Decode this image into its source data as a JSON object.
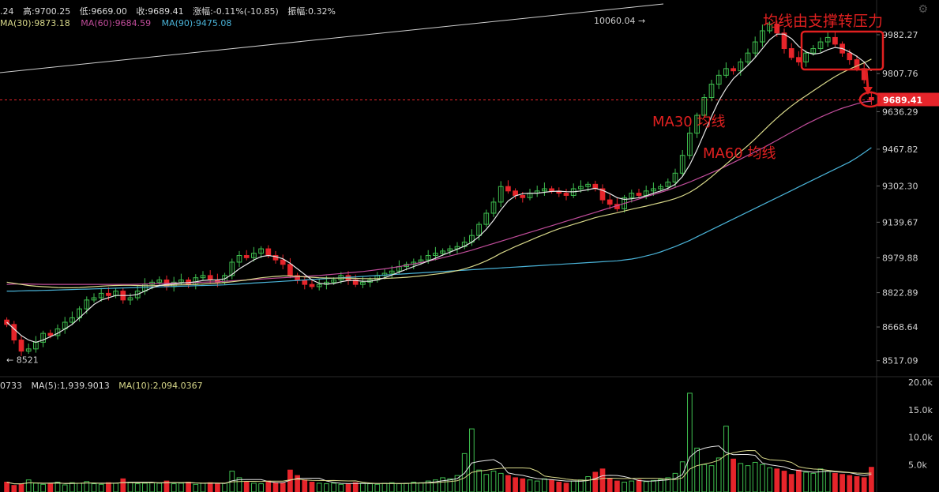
{
  "header": {
    "open_frag": ".24",
    "high": "高:9700.25",
    "low": "低:9669.00",
    "close": "收:9689.41",
    "change": "涨幅:-0.11%(-10.85)",
    "amplitude": "振幅:0.32%"
  },
  "ma_legend": {
    "ma30": "MA(30):9873.18",
    "ma60": "MA(60):9684.59",
    "ma90": "MA(90):9475.08"
  },
  "volume_legend": {
    "vol_frag": "0733",
    "ma5": "MA(5):1,939.9013",
    "ma10": "MA(10):2,094.0367"
  },
  "annotations": {
    "title": "均线由支撑转压力",
    "ma30_label": "MA30 均线",
    "ma60_label": "MA60 均线"
  },
  "markers": {
    "high_label": "10060.04 →",
    "low_label": "← 8521",
    "current_price": "9689.41"
  },
  "colors": {
    "up": "#3fbf4f",
    "down": "#e6252b",
    "ma_short": "#e6e6e6",
    "ma30": "#d8d88a",
    "ma60": "#c04c9a",
    "ma90": "#4ab3d8",
    "annotation": "#e02020"
  },
  "chart_data": {
    "type": "candlestick",
    "y_ticks": [
      "9982.27",
      "9807.76",
      "9636.29",
      "9467.82",
      "9302.30",
      "9139.67",
      "8979.88",
      "8822.89",
      "8668.64",
      "8517.09"
    ],
    "y_range": [
      8470,
      10110
    ],
    "volume_ticks": [
      "20.0k",
      "15.0k",
      "10.0k",
      "5.0k"
    ],
    "volume_range": [
      0,
      20000
    ],
    "current_price": 9689.41,
    "high": 10060.04,
    "low": 8521,
    "n_candles": 120,
    "closes": [
      8680,
      8610,
      8560,
      8570,
      8600,
      8640,
      8630,
      8660,
      8690,
      8710,
      8750,
      8790,
      8800,
      8820,
      8810,
      8830,
      8790,
      8800,
      8830,
      8860,
      8870,
      8880,
      8850,
      8870,
      8880,
      8860,
      8890,
      8900,
      8880,
      8870,
      8900,
      8960,
      8990,
      8980,
      9000,
      9020,
      8990,
      8970,
      8950,
      8900,
      8880,
      8860,
      8850,
      8860,
      8870,
      8880,
      8900,
      8880,
      8860,
      8870,
      8880,
      8900,
      8910,
      8920,
      8940,
      8950,
      8960,
      8970,
      8990,
      9000,
      9010,
      9020,
      9030,
      9050,
      9080,
      9130,
      9180,
      9230,
      9300,
      9280,
      9260,
      9250,
      9270,
      9280,
      9290,
      9280,
      9270,
      9260,
      9290,
      9300,
      9310,
      9290,
      9240,
      9220,
      9200,
      9250,
      9270,
      9260,
      9280,
      9290,
      9300,
      9320,
      9360,
      9440,
      9540,
      9620,
      9700,
      9760,
      9800,
      9830,
      9820,
      9860,
      9900,
      9950,
      10000,
      10030,
      9990,
      9920,
      9880,
      9860,
      9900,
      9920,
      9950,
      9970,
      9940,
      9900,
      9870,
      9830,
      9780,
      9689
    ],
    "opens": [
      8700,
      8680,
      8610,
      8560,
      8570,
      8600,
      8640,
      8630,
      8660,
      8690,
      8710,
      8750,
      8790,
      8800,
      8820,
      8810,
      8830,
      8790,
      8800,
      8830,
      8860,
      8870,
      8880,
      8850,
      8870,
      8880,
      8860,
      8890,
      8900,
      8880,
      8870,
      8900,
      8960,
      8990,
      8980,
      9000,
      9020,
      8990,
      8970,
      8950,
      8900,
      8880,
      8860,
      8850,
      8860,
      8870,
      8880,
      8900,
      8880,
      8860,
      8870,
      8880,
      8900,
      8910,
      8920,
      8940,
      8950,
      8960,
      8970,
      8990,
      9000,
      9010,
      9020,
      9030,
      9050,
      9080,
      9130,
      9180,
      9230,
      9300,
      9280,
      9260,
      9250,
      9270,
      9280,
      9290,
      9280,
      9270,
      9260,
      9290,
      9300,
      9310,
      9290,
      9240,
      9220,
      9200,
      9250,
      9270,
      9260,
      9280,
      9290,
      9300,
      9320,
      9360,
      9440,
      9540,
      9620,
      9700,
      9760,
      9800,
      9830,
      9820,
      9860,
      9900,
      9950,
      10000,
      10030,
      9990,
      9920,
      9880,
      9860,
      9900,
      9920,
      9950,
      9970,
      9940,
      9900,
      9870,
      9830,
      9700
    ],
    "ma_short": [
      8690,
      8660,
      8630,
      8610,
      8600,
      8610,
      8625,
      8640,
      8660,
      8680,
      8710,
      8740,
      8770,
      8790,
      8800,
      8810,
      8810,
      8810,
      8815,
      8830,
      8845,
      8855,
      8860,
      8862,
      8866,
      8868,
      8872,
      8878,
      8880,
      8880,
      8885,
      8905,
      8930,
      8950,
      8970,
      8985,
      8990,
      8985,
      8975,
      8955,
      8930,
      8905,
      8880,
      8865,
      8862,
      8864,
      8872,
      8878,
      8878,
      8874,
      8874,
      8880,
      8890,
      8902,
      8915,
      8928,
      8940,
      8952,
      8965,
      8978,
      8992,
      9005,
      9018,
      9032,
      9050,
      9075,
      9108,
      9148,
      9195,
      9235,
      9258,
      9268,
      9270,
      9270,
      9274,
      9278,
      9279,
      9277,
      9276,
      9280,
      9286,
      9292,
      9283,
      9268,
      9250,
      9242,
      9245,
      9250,
      9258,
      9270,
      9280,
      9292,
      9310,
      9345,
      9398,
      9465,
      9540,
      9615,
      9685,
      9740,
      9785,
      9815,
      9845,
      9880,
      9920,
      9960,
      9985,
      9985,
      9965,
      9930,
      9905,
      9895,
      9900,
      9915,
      9925,
      9920,
      9905,
      9885,
      9860,
      9820
    ],
    "ma30": [
      8870,
      8865,
      8860,
      8855,
      8852,
      8850,
      8848,
      8846,
      8845,
      8845,
      8846,
      8848,
      8850,
      8852,
      8854,
      8855,
      8856,
      8856,
      8855,
      8854,
      8854,
      8855,
      8856,
      8857,
      8858,
      8859,
      8860,
      8862,
      8864,
      8866,
      8868,
      8872,
      8876,
      8880,
      8885,
      8890,
      8893,
      8896,
      8898,
      8898,
      8896,
      8894,
      8892,
      8890,
      8889,
      8888,
      8888,
      8888,
      8887,
      8886,
      8886,
      8886,
      8887,
      8888,
      8890,
      8892,
      8895,
      8898,
      8902,
      8906,
      8910,
      8916,
      8922,
      8930,
      8940,
      8952,
      8966,
      8982,
      9000,
      9015,
      9030,
      9044,
      9058,
      9072,
      9085,
      9098,
      9110,
      9120,
      9130,
      9140,
      9150,
      9160,
      9168,
      9175,
      9182,
      9190,
      9198,
      9205,
      9212,
      9220,
      9228,
      9236,
      9246,
      9258,
      9274,
      9294,
      9318,
      9344,
      9372,
      9400,
      9428,
      9456,
      9484,
      9514,
      9546,
      9578,
      9608,
      9636,
      9662,
      9686,
      9708,
      9730,
      9752,
      9774,
      9794,
      9812,
      9828,
      9842,
      9856,
      9873
    ],
    "ma60": [
      8860,
      8862,
      8862,
      8862,
      8861,
      8860,
      8860,
      8860,
      8860,
      8860,
      8860,
      8860,
      8860,
      8860,
      8860,
      8860,
      8860,
      8860,
      8861,
      8862,
      8863,
      8864,
      8865,
      8866,
      8867,
      8868,
      8869,
      8870,
      8871,
      8872,
      8874,
      8876,
      8878,
      8880,
      8882,
      8884,
      8886,
      8888,
      8890,
      8892,
      8894,
      8896,
      8898,
      8900,
      8903,
      8906,
      8909,
      8912,
      8915,
      8918,
      8922,
      8926,
      8930,
      8935,
      8940,
      8946,
      8952,
      8958,
      8965,
      8972,
      8980,
      8988,
      8996,
      9005,
      9014,
      9024,
      9034,
      9044,
      9054,
      9064,
      9074,
      9084,
      9094,
      9104,
      9114,
      9124,
      9134,
      9144,
      9154,
      9164,
      9174,
      9184,
      9194,
      9204,
      9214,
      9224,
      9234,
      9244,
      9254,
      9264,
      9274,
      9284,
      9296,
      9308,
      9320,
      9334,
      9348,
      9362,
      9376,
      9392,
      9408,
      9424,
      9440,
      9456,
      9472,
      9490,
      9508,
      9526,
      9544,
      9562,
      9580,
      9596,
      9612,
      9626,
      9640,
      9652,
      9662,
      9672,
      9680,
      9684
    ],
    "ma90": [
      8830,
      8830,
      8831,
      8832,
      8832,
      8833,
      8834,
      8835,
      8836,
      8837,
      8838,
      8839,
      8840,
      8841,
      8842,
      8843,
      8844,
      8845,
      8846,
      8847,
      8848,
      8849,
      8850,
      8851,
      8852,
      8853,
      8854,
      8855,
      8856,
      8857,
      8858,
      8860,
      8862,
      8864,
      8866,
      8868,
      8870,
      8872,
      8874,
      8876,
      8878,
      8880,
      8882,
      8884,
      8886,
      8888,
      8890,
      8892,
      8894,
      8896,
      8898,
      8900,
      8902,
      8904,
      8906,
      8908,
      8910,
      8912,
      8914,
      8916,
      8918,
      8920,
      8922,
      8924,
      8926,
      8928,
      8930,
      8932,
      8934,
      8936,
      8938,
      8940,
      8942,
      8944,
      8946,
      8948,
      8950,
      8952,
      8954,
      8956,
      8958,
      8960,
      8962,
      8964,
      8966,
      8970,
      8974,
      8980,
      8988,
      8996,
      9006,
      9018,
      9030,
      9044,
      9058,
      9074,
      9090,
      9106,
      9122,
      9138,
      9154,
      9170,
      9186,
      9202,
      9218,
      9234,
      9250,
      9266,
      9282,
      9298,
      9314,
      9330,
      9346,
      9362,
      9378,
      9394,
      9410,
      9430,
      9452,
      9475
    ],
    "volumes": [
      1800,
      1200,
      1500,
      2200,
      1600,
      1400,
      1500,
      1800,
      1300,
      1700,
      1600,
      1900,
      1500,
      1400,
      1700,
      1600,
      2400,
      1800,
      1500,
      1600,
      1700,
      1600,
      2000,
      1500,
      1600,
      1800,
      1400,
      1600,
      1700,
      1500,
      1600,
      3800,
      2600,
      1800,
      1600,
      1500,
      2000,
      1700,
      1600,
      4000,
      3000,
      2200,
      1800,
      1600,
      1500,
      1600,
      1400,
      1500,
      1700,
      1600,
      1500,
      1400,
      1600,
      1700,
      1500,
      1600,
      1800,
      1700,
      2000,
      2200,
      2600,
      2400,
      3000,
      7000,
      11500,
      4000,
      3200,
      3800,
      3400,
      3000,
      2600,
      2400,
      2200,
      2000,
      2400,
      2200,
      1800,
      1600,
      2000,
      2200,
      2800,
      3600,
      4200,
      2400,
      2000,
      1800,
      2000,
      2200,
      1900,
      2100,
      2300,
      2600,
      3400,
      5500,
      18000,
      8000,
      5000,
      4800,
      6200,
      12000,
      6000,
      5200,
      4800,
      5400,
      5000,
      4400,
      4200,
      3800,
      3200,
      4000,
      3600,
      3400,
      4200,
      3800,
      3400,
      3200,
      3000,
      2800,
      2600,
      4500
    ]
  }
}
